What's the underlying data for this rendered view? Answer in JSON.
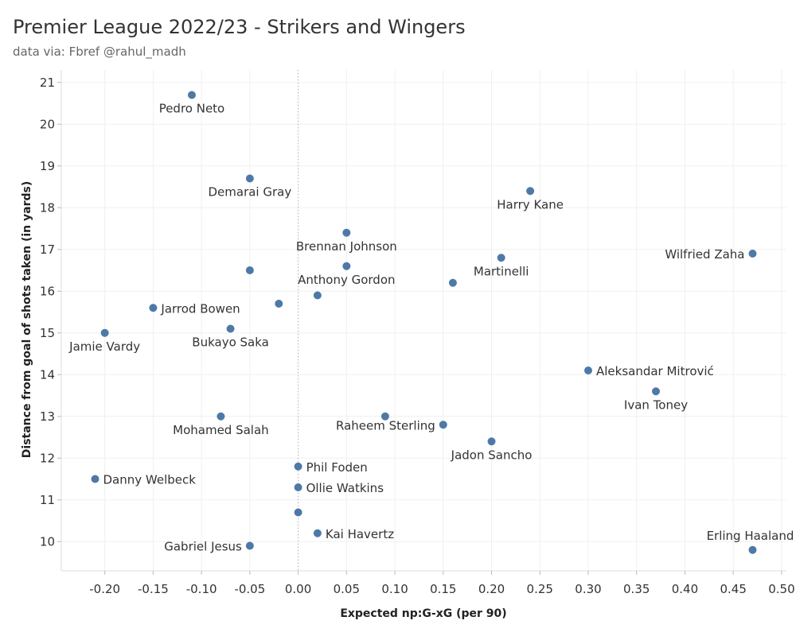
{
  "header": {
    "title": "Premier League 2022/23 - Strikers and Wingers",
    "subtitle": "data via: Fbref @rahul_madh"
  },
  "chart_data": {
    "type": "scatter",
    "title": "Premier League 2022/23 - Strikers and Wingers",
    "subtitle": "data via: Fbref @rahul_madh",
    "xlabel": "Expected np:G-xG (per 90)",
    "ylabel": "Distance from goal of shots taken (in yards)",
    "xlim": [
      -0.245,
      0.505
    ],
    "ylim": [
      9.3,
      21.3
    ],
    "x_ticks": [
      "-0.20",
      "-0.15",
      "-0.10",
      "-0.05",
      "0.00",
      "0.05",
      "0.10",
      "0.15",
      "0.20",
      "0.25",
      "0.30",
      "0.35",
      "0.40",
      "0.45",
      "0.50"
    ],
    "y_ticks": [
      "10",
      "11",
      "12",
      "13",
      "14",
      "15",
      "16",
      "17",
      "18",
      "19",
      "20",
      "21"
    ],
    "reference_line_x": 0,
    "grid": true,
    "point_color": "#4e79a7",
    "points": [
      {
        "label": "Pedro Neto",
        "x": -0.11,
        "y": 20.7,
        "pos": "below"
      },
      {
        "label": "Demarai Gray",
        "x": -0.05,
        "y": 18.7,
        "pos": "below"
      },
      {
        "label": "Harry Kane",
        "x": 0.24,
        "y": 18.4,
        "pos": "below"
      },
      {
        "label": "Brennan Johnson",
        "x": 0.05,
        "y": 17.4,
        "pos": "below"
      },
      {
        "label": "Wilfried Zaha",
        "x": 0.47,
        "y": 16.9,
        "pos": "left"
      },
      {
        "label": "Martinelli",
        "x": 0.21,
        "y": 16.8,
        "pos": "below"
      },
      {
        "label": "",
        "x": -0.05,
        "y": 16.5,
        "pos": "none"
      },
      {
        "label": "Anthony Gordon",
        "x": 0.05,
        "y": 16.6,
        "pos": "below"
      },
      {
        "label": "",
        "x": 0.16,
        "y": 16.2,
        "pos": "none"
      },
      {
        "label": "",
        "x": 0.02,
        "y": 15.9,
        "pos": "none"
      },
      {
        "label": "",
        "x": -0.02,
        "y": 15.7,
        "pos": "none"
      },
      {
        "label": "Jarrod Bowen",
        "x": -0.15,
        "y": 15.6,
        "pos": "right"
      },
      {
        "label": "Bukayo Saka",
        "x": -0.07,
        "y": 15.1,
        "pos": "below"
      },
      {
        "label": "Jamie Vardy",
        "x": -0.2,
        "y": 15.0,
        "pos": "below"
      },
      {
        "label": "Aleksandar Mitrović",
        "x": 0.3,
        "y": 14.1,
        "pos": "right"
      },
      {
        "label": "Ivan Toney",
        "x": 0.37,
        "y": 13.6,
        "pos": "below"
      },
      {
        "label": "Mohamed Salah",
        "x": -0.08,
        "y": 13.0,
        "pos": "below"
      },
      {
        "label": "",
        "x": 0.09,
        "y": 13.0,
        "pos": "none"
      },
      {
        "label": "Raheem Sterling",
        "x": 0.15,
        "y": 12.8,
        "pos": "left"
      },
      {
        "label": "Jadon Sancho",
        "x": 0.2,
        "y": 12.4,
        "pos": "below"
      },
      {
        "label": "Phil Foden",
        "x": 0.0,
        "y": 11.8,
        "pos": "right"
      },
      {
        "label": "Danny Welbeck",
        "x": -0.21,
        "y": 11.5,
        "pos": "right"
      },
      {
        "label": "Ollie Watkins",
        "x": 0.0,
        "y": 11.3,
        "pos": "right"
      },
      {
        "label": "",
        "x": 0.0,
        "y": 10.7,
        "pos": "none"
      },
      {
        "label": "Kai Havertz",
        "x": 0.02,
        "y": 10.2,
        "pos": "right"
      },
      {
        "label": "Gabriel Jesus",
        "x": -0.05,
        "y": 9.9,
        "pos": "left"
      },
      {
        "label": "Erling Haaland",
        "x": 0.47,
        "y": 9.8,
        "pos": "above"
      }
    ]
  }
}
